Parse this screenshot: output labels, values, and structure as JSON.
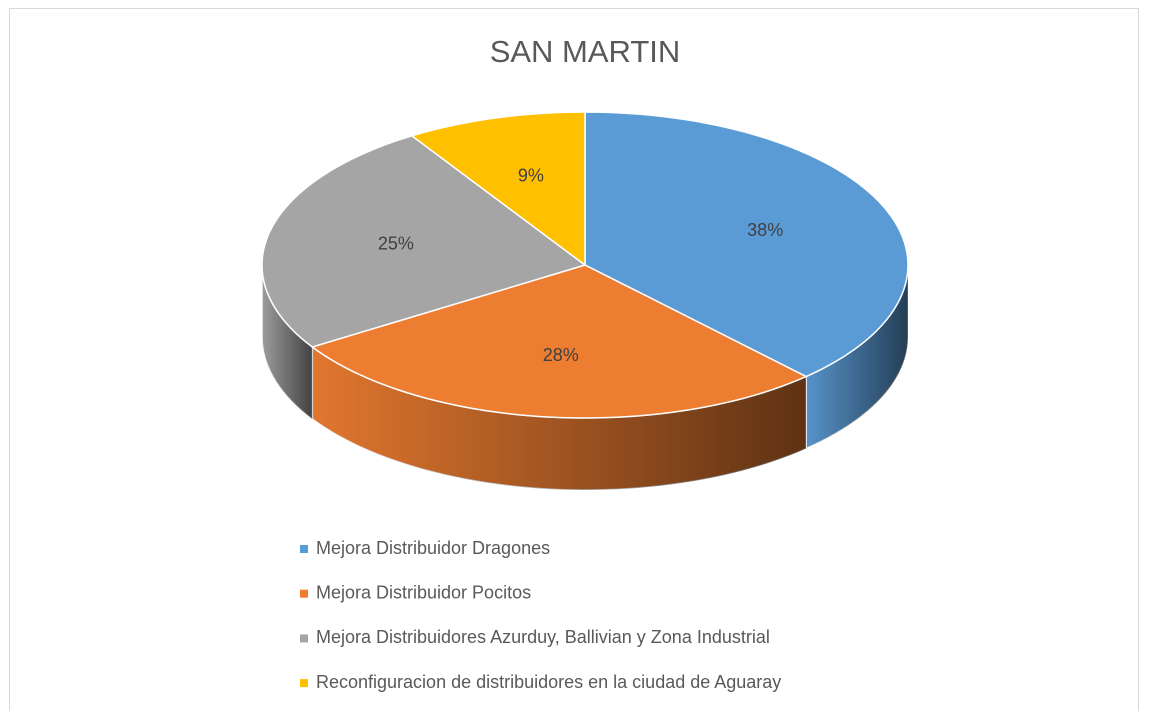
{
  "chart_data": {
    "type": "pie",
    "title": "SAN MARTIN",
    "categories": [
      "Mejora Distribuidor Dragones",
      "Mejora Distribuidor Pocitos",
      "Mejora Distribuidores Azurduy, Ballivian y Zona Industrial",
      "Reconfiguracion de distribuidores en la ciudad de Aguaray"
    ],
    "values": [
      38,
      28,
      25,
      9
    ],
    "value_labels": [
      "38%",
      "28%",
      "25%",
      "9%"
    ],
    "colors": [
      "#5b9bd5",
      "#ed7d31",
      "#a5a5a5",
      "#ffc000"
    ],
    "legend": "bottom"
  }
}
